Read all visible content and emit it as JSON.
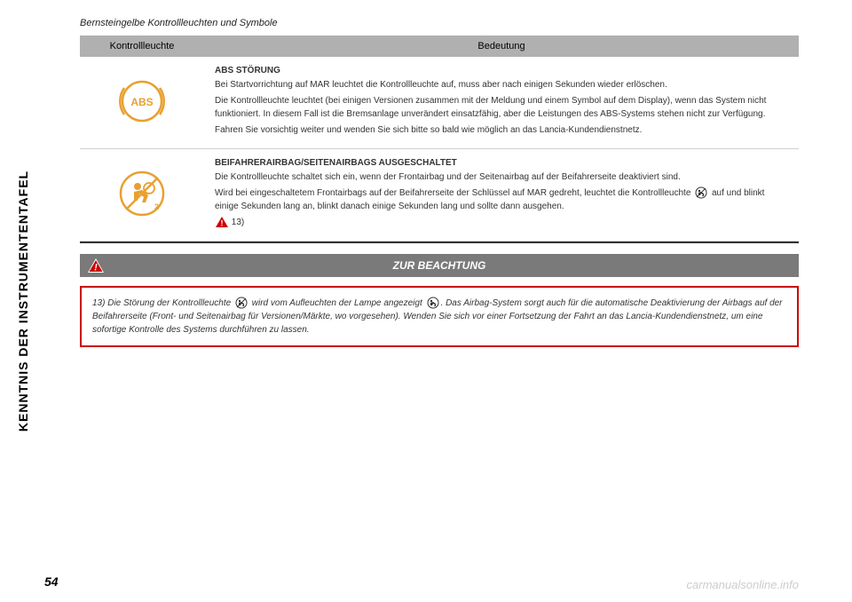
{
  "sidebar": "KENNTNIS DER INSTRUMENTENTAFEL",
  "subtitle": "Bernsteingelbe Kontrollleuchten und Symbole",
  "table": {
    "header_icon": "Kontrollleuchte",
    "header_meaning": "Bedeutung",
    "rows": [
      {
        "icon_type": "abs",
        "title": "ABS STÖRUNG",
        "paragraphs": [
          "Bei Startvorrichtung auf MAR leuchtet die Kontrollleuchte auf, muss aber nach einigen Sekunden wieder erlöschen.",
          "Die Kontrollleuchte leuchtet (bei einigen Versionen zusammen mit der Meldung und einem Symbol auf dem Display), wenn das System nicht funktioniert. In diesem Fall ist die Bremsanlage unverändert einsatzfähig, aber die Leistungen des ABS-Systems stehen nicht zur Verfügung.",
          "Fahren Sie vorsichtig weiter und wenden Sie sich bitte so bald wie möglich an das Lancia-Kundendienstnetz."
        ]
      },
      {
        "icon_type": "airbag-off",
        "title": "BEIFAHRERAIRBAG/SEITENAIRBAGS AUSGESCHALTET",
        "paragraphs": [
          "Die Kontrollleuchte schaltet sich ein, wenn der Frontairbag und der Seitenairbag auf der Beifahrerseite deaktiviert sind.",
          "Wird bei eingeschaltetem Frontairbags auf der Beifahrerseite der Schlüssel auf MAR gedreht, leuchtet die Kontrollleuchte {airbag-icon} auf und blinkt einige Sekunden lang an, blinkt danach einige Sekunden lang und sollte dann ausgehen."
        ],
        "footnote_ref": "13)"
      }
    ]
  },
  "warning_header": "ZUR BEACHTUNG",
  "warning_text": "13) Die Störung der Kontrollleuchte {airbag-icon} wird vom Aufleuchten der Lampe angezeigt {airbag-warn-icon}. Das Airbag-System sorgt auch für die automatische Deaktivierung der Airbags auf der Beifahrerseite (Front- und Seitenairbag für Versionen/Märkte, wo vorgesehen). Wenden Sie sich vor einer Fortsetzung der Fahrt an das Lancia-Kundendienstnetz, um eine sofortige Kontrolle des Systems durchführen zu lassen.",
  "page_number": "54",
  "watermark": "carmanualsonline.info",
  "colors": {
    "amber": "#e8a030",
    "header_bg": "#b0b0b0",
    "warning_bg": "#7a7a7a",
    "warning_border": "#cc0000",
    "text": "#333333",
    "watermark": "#cccccc"
  }
}
